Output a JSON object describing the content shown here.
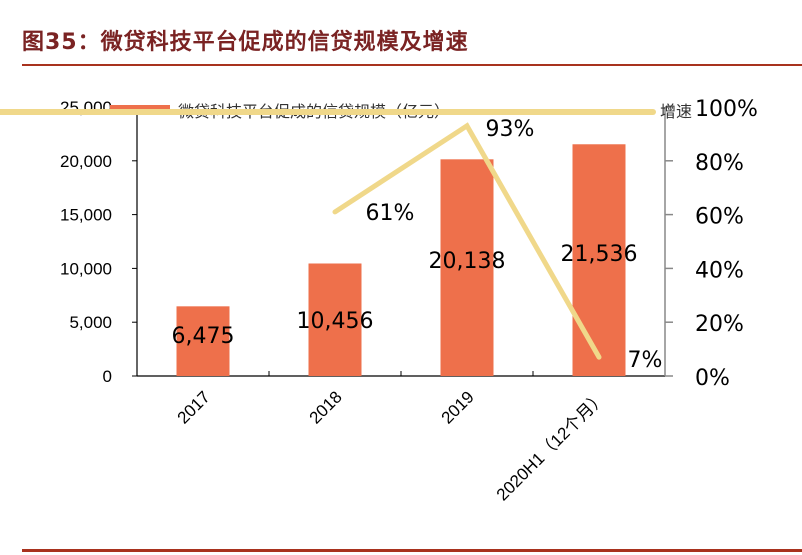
{
  "figure": {
    "title": "图35：微贷科技平台促成的信贷规模及增速"
  },
  "colors": {
    "bar": "#ee704b",
    "line": "#f0d88a",
    "title": "#7a2323",
    "rule": "#a8321e"
  },
  "chart_data": {
    "type": "bar+line",
    "title": "图35：微贷科技平台促成的信贷规模及增速",
    "categories": [
      "2017",
      "2018",
      "2019",
      "2020H1（12个月）"
    ],
    "series": [
      {
        "name": "微贷科技平台促成的信贷规模（亿元）",
        "type": "bar",
        "axis": "left",
        "values": [
          6475,
          10456,
          20138,
          21536
        ],
        "labels": [
          "6,475",
          "10,456",
          "20,138",
          "21,536"
        ]
      },
      {
        "name": "增速",
        "type": "line",
        "axis": "right",
        "values": [
          null,
          61,
          93,
          7
        ],
        "labels": [
          "",
          "61%",
          "93%",
          "7%"
        ]
      }
    ],
    "left_axis": {
      "ylim": [
        0,
        25000
      ],
      "ticks": [
        "0",
        "5,000",
        "10,000",
        "15,000",
        "20,000",
        "25,000"
      ]
    },
    "right_axis": {
      "ylim": [
        0,
        100
      ],
      "ticks": [
        "0%",
        "20%",
        "40%",
        "60%",
        "80%",
        "100%"
      ]
    },
    "legend": {
      "position": "top",
      "entries": [
        "微贷科技平台促成的信贷规模（亿元）",
        "增速"
      ]
    },
    "grid": false,
    "xlabel": "",
    "ylabel": ""
  }
}
